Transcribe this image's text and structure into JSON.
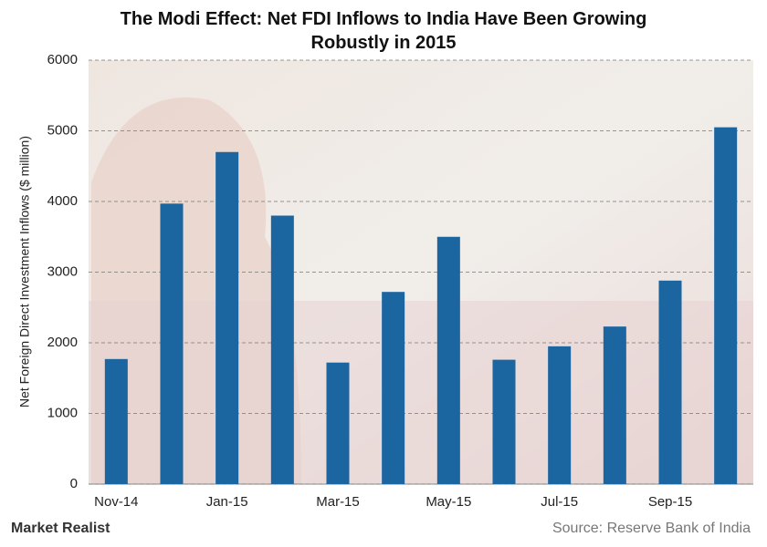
{
  "chart_data": {
    "type": "bar",
    "title": "The Modi Effect: Net FDI Inflows to India Have Been Growing Robustly in 2015",
    "y_label": "Net Foreign Direct Investment Inflows ($ million)",
    "categories": [
      "Nov-14",
      null,
      "Jan-15",
      null,
      "Mar-15",
      null,
      "May-15",
      null,
      "Jul-15",
      null,
      "Sep-15",
      null
    ],
    "values": [
      1770,
      3970,
      4700,
      3800,
      1720,
      2720,
      3500,
      1760,
      1950,
      2230,
      2880,
      5050
    ],
    "color": "#1b65a0",
    "ylim": [
      0,
      6000
    ],
    "yticks": [
      0,
      1000,
      2000,
      3000,
      4000,
      5000,
      6000
    ],
    "grid": true,
    "brand": "Market Realist",
    "source": "Source: Reserve Bank of India"
  }
}
